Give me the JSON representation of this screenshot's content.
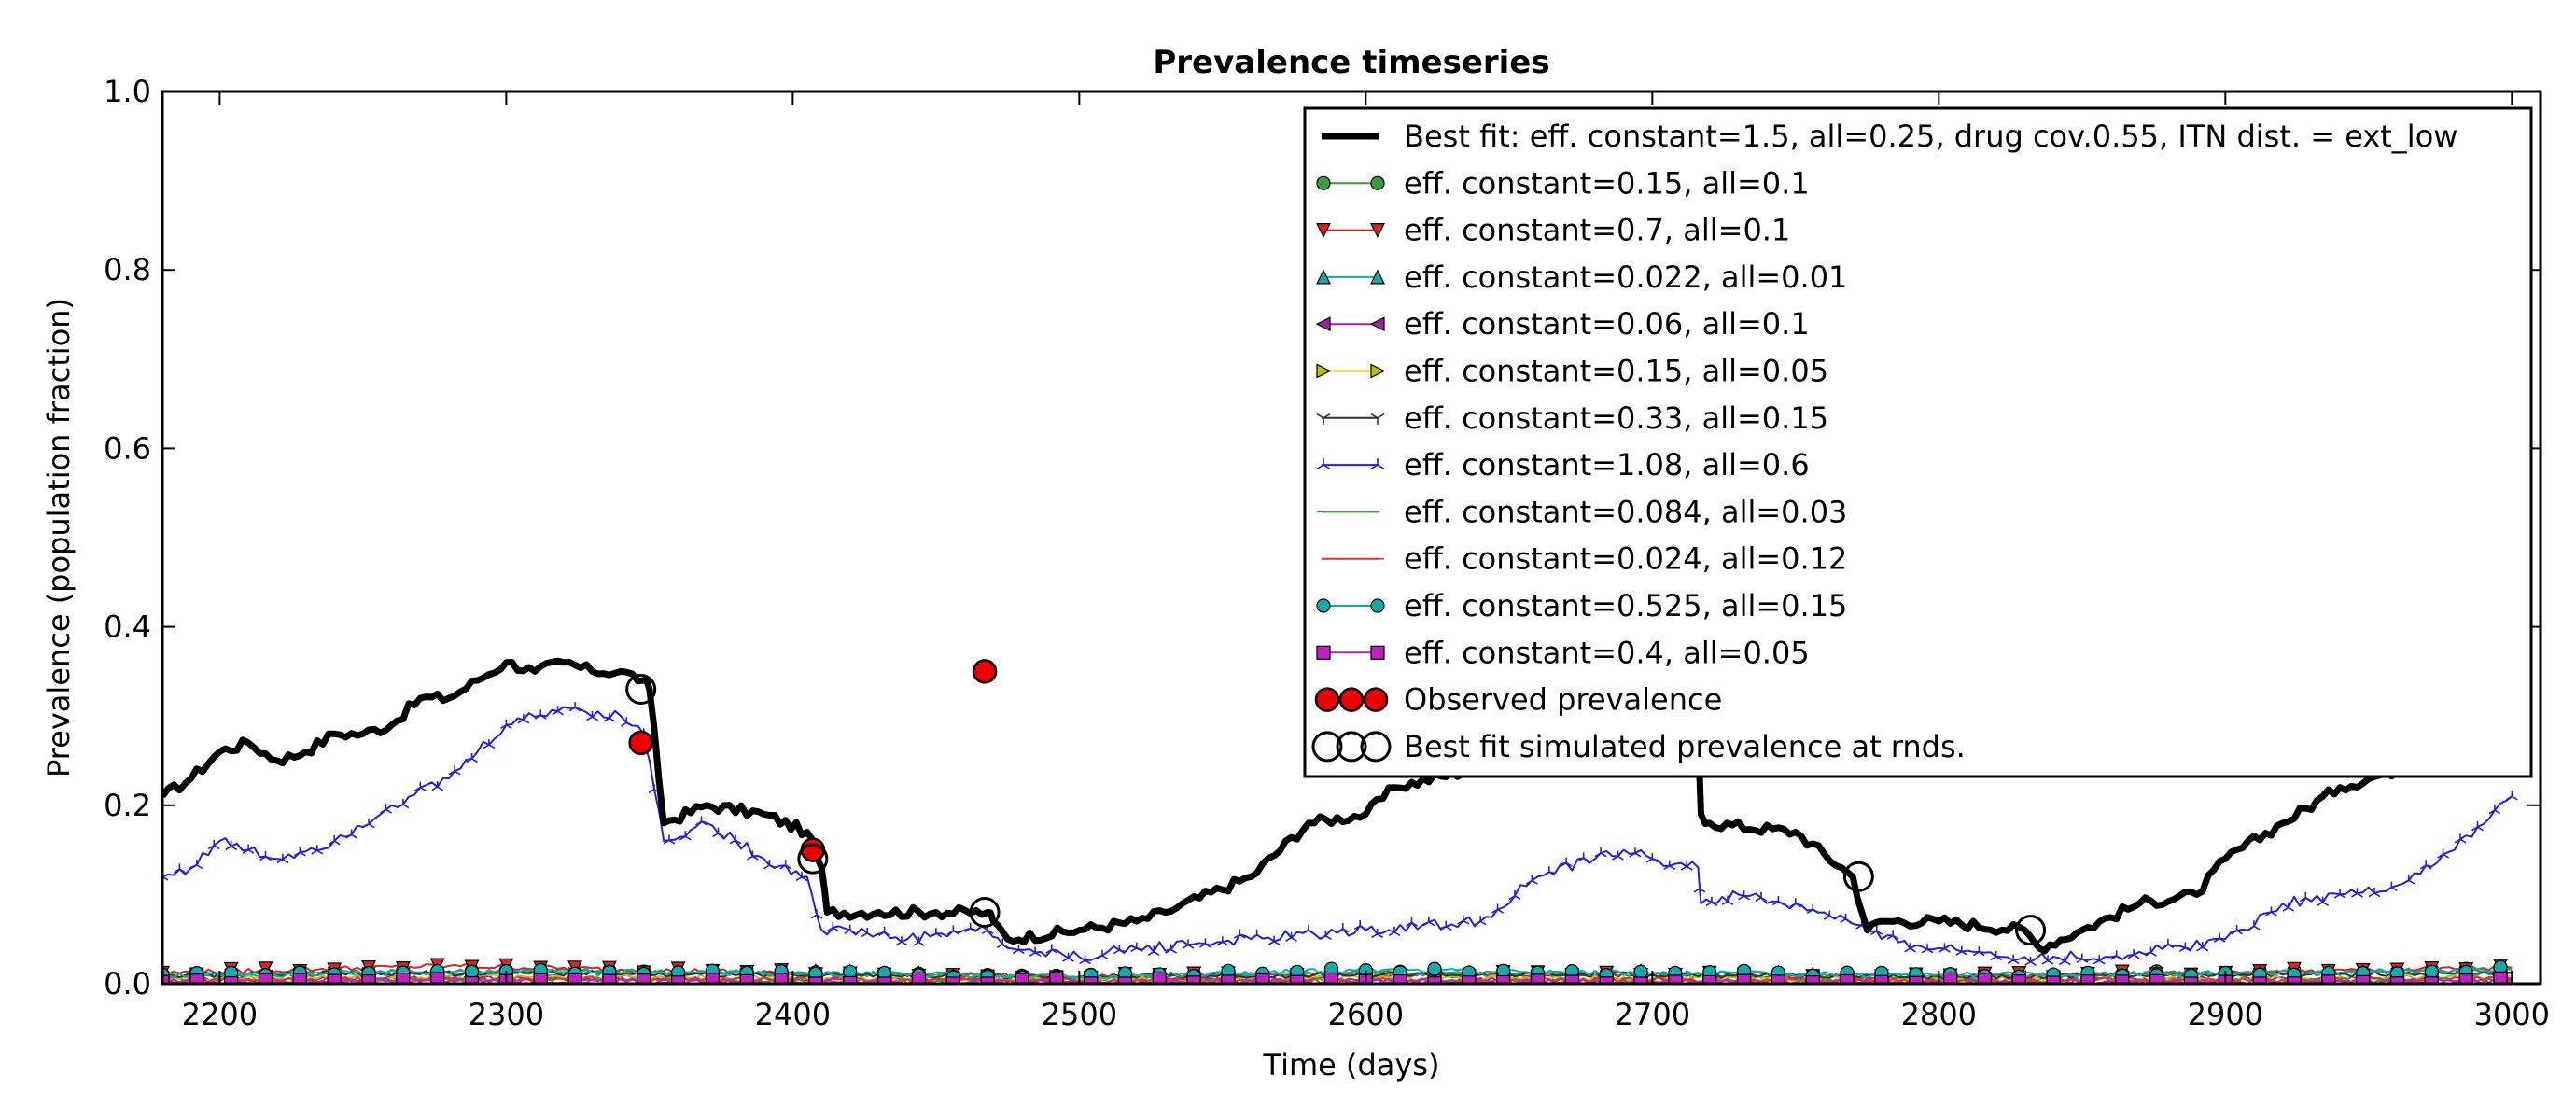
{
  "chart_data": {
    "type": "line",
    "title": "Prevalence timeseries",
    "xlabel": "Time (days)",
    "ylabel": "Prevalence (population fraction)",
    "xlim": [
      2180,
      3010
    ],
    "ylim": [
      0.0,
      1.0
    ],
    "xticks": [
      "2200",
      "2300",
      "2400",
      "2500",
      "2600",
      "2700",
      "2800",
      "2900",
      "3000"
    ],
    "yticks": [
      "0.0",
      "0.2",
      "0.4",
      "0.6",
      "0.8",
      "1.0"
    ],
    "grid": false,
    "legend_position": "top-right",
    "series": [
      {
        "name": "Best fit: eff. constant=1.5, all=0.25, drug cov.0.55, ITN dist. = ext_low",
        "color": "#000000",
        "style": "thick-line",
        "marker": "none",
        "x": [
          2180,
          2190,
          2200,
          2210,
          2220,
          2230,
          2240,
          2250,
          2260,
          2270,
          2280,
          2290,
          2300,
          2310,
          2320,
          2330,
          2340,
          2348,
          2350,
          2355,
          2370,
          2390,
          2405,
          2410,
          2412,
          2430,
          2450,
          2468,
          2470,
          2475,
          2500,
          2520,
          2530,
          2560,
          2580,
          2600,
          2610,
          2650,
          2700,
          2716,
          2717,
          2720,
          2750,
          2770,
          2775,
          2780,
          2800,
          2830,
          2835,
          2850,
          2870,
          2890,
          2900,
          2920,
          2940,
          2960
        ],
        "y": [
          0.21,
          0.23,
          0.26,
          0.27,
          0.25,
          0.26,
          0.28,
          0.28,
          0.29,
          0.32,
          0.32,
          0.34,
          0.36,
          0.35,
          0.36,
          0.35,
          0.35,
          0.34,
          0.33,
          0.18,
          0.2,
          0.19,
          0.17,
          0.13,
          0.08,
          0.08,
          0.08,
          0.08,
          0.07,
          0.05,
          0.06,
          0.07,
          0.08,
          0.12,
          0.18,
          0.19,
          0.22,
          0.25,
          0.27,
          0.28,
          0.19,
          0.18,
          0.17,
          0.12,
          0.06,
          0.07,
          0.07,
          0.06,
          0.04,
          0.06,
          0.09,
          0.1,
          0.14,
          0.18,
          0.22,
          0.24
        ]
      },
      {
        "name": "eff. constant=0.15, all=0.1",
        "color": "#3a9b3a",
        "marker": "circle",
        "x": [
          2180,
          2300,
          2400,
          2500,
          2600,
          2700,
          2800,
          2900,
          3000
        ],
        "y": [
          0.01,
          0.015,
          0.012,
          0.008,
          0.012,
          0.01,
          0.008,
          0.012,
          0.015
        ]
      },
      {
        "name": "eff. constant=0.7, all=0.1",
        "color": "#d62728",
        "marker": "triangle-down",
        "x": [
          2180,
          2280,
          2400,
          2500,
          2600,
          2700,
          2800,
          2900,
          3000
        ],
        "y": [
          0.012,
          0.02,
          0.012,
          0.008,
          0.01,
          0.01,
          0.008,
          0.012,
          0.018
        ]
      },
      {
        "name": "eff. constant=0.022, all=0.01",
        "color": "#17a9a9",
        "marker": "triangle-up",
        "x": [
          2180,
          2300,
          2400,
          2500,
          2600,
          2700,
          2800,
          2900,
          3000
        ],
        "y": [
          0.008,
          0.012,
          0.012,
          0.006,
          0.012,
          0.012,
          0.008,
          0.01,
          0.012
        ]
      },
      {
        "name": "eff. constant=0.06, all=0.1",
        "color": "#a020a0",
        "marker": "triangle-left",
        "x": [
          2180,
          2300,
          2400,
          2500,
          2600,
          2700,
          2800,
          2900,
          3000
        ],
        "y": [
          0.005,
          0.006,
          0.005,
          0.004,
          0.005,
          0.005,
          0.004,
          0.005,
          0.006
        ]
      },
      {
        "name": "eff. constant=0.15, all=0.05",
        "color": "#bfbf00",
        "marker": "triangle-right",
        "x": [
          2180,
          2300,
          2400,
          2500,
          2600,
          2700,
          2800,
          2900,
          3000
        ],
        "y": [
          0.006,
          0.008,
          0.007,
          0.005,
          0.006,
          0.006,
          0.005,
          0.006,
          0.007
        ]
      },
      {
        "name": "eff. constant=0.33, all=0.15",
        "color": "#333333",
        "marker": "tri-down",
        "x": [
          2180,
          2300,
          2400,
          2500,
          2600,
          2700,
          2800,
          2900,
          3000
        ],
        "y": [
          0.01,
          0.012,
          0.01,
          0.008,
          0.01,
          0.01,
          0.008,
          0.01,
          0.012
        ]
      },
      {
        "name": "eff. constant=1.08, all=0.6",
        "color": "#2020e0",
        "marker": "tri-up",
        "x": [
          2180,
          2190,
          2200,
          2210,
          2220,
          2240,
          2260,
          2280,
          2290,
          2300,
          2320,
          2340,
          2348,
          2350,
          2355,
          2370,
          2390,
          2405,
          2410,
          2420,
          2440,
          2460,
          2468,
          2475,
          2500,
          2520,
          2560,
          2600,
          2640,
          2660,
          2680,
          2690,
          2700,
          2716,
          2717,
          2730,
          2760,
          2775,
          2780,
          2800,
          2830,
          2860,
          2900,
          2920,
          2940,
          2960,
          2980,
          3000
        ],
        "y": [
          0.12,
          0.13,
          0.16,
          0.15,
          0.14,
          0.16,
          0.2,
          0.23,
          0.26,
          0.29,
          0.31,
          0.3,
          0.28,
          0.25,
          0.16,
          0.18,
          0.14,
          0.12,
          0.06,
          0.06,
          0.05,
          0.06,
          0.06,
          0.04,
          0.03,
          0.04,
          0.05,
          0.06,
          0.07,
          0.12,
          0.14,
          0.15,
          0.14,
          0.13,
          0.09,
          0.1,
          0.08,
          0.06,
          0.05,
          0.04,
          0.03,
          0.03,
          0.05,
          0.09,
          0.1,
          0.11,
          0.15,
          0.21
        ]
      },
      {
        "name": "eff. constant=0.084, all=0.03",
        "color": "#3a9b3a",
        "marker": "tick-left",
        "x": [
          2180,
          2300,
          2400,
          2500,
          2600,
          2700,
          2800,
          2900,
          3000
        ],
        "y": [
          0.003,
          0.004,
          0.003,
          0.002,
          0.003,
          0.003,
          0.002,
          0.003,
          0.004
        ]
      },
      {
        "name": "eff. constant=0.024, all=0.12",
        "color": "#e03030",
        "marker": "tick-right",
        "x": [
          2180,
          2300,
          2400,
          2500,
          2600,
          2700,
          2800,
          2900,
          3000
        ],
        "y": [
          0.004,
          0.005,
          0.004,
          0.003,
          0.004,
          0.004,
          0.003,
          0.004,
          0.005
        ]
      },
      {
        "name": "eff. constant=0.525, all=0.15",
        "color": "#17a9a9",
        "marker": "circle",
        "x": [
          2180,
          2300,
          2400,
          2500,
          2600,
          2700,
          2800,
          2900,
          3000
        ],
        "y": [
          0.01,
          0.014,
          0.012,
          0.008,
          0.015,
          0.012,
          0.01,
          0.012,
          0.016
        ]
      },
      {
        "name": "eff. constant=0.4, all=0.05",
        "color": "#c020c0",
        "marker": "square",
        "x": [
          2180,
          2300,
          2400,
          2500,
          2600,
          2700,
          2800,
          2900,
          3000
        ],
        "y": [
          0.002,
          0.003,
          0.002,
          0.002,
          0.003,
          0.002,
          0.002,
          0.002,
          0.003
        ]
      }
    ],
    "observed": {
      "name": "Observed prevalence",
      "color": "#ee0000",
      "x": [
        2347,
        2407,
        2467
      ],
      "y": [
        0.27,
        0.15,
        0.35
      ]
    },
    "best_fit_at_rounds": {
      "name": "Best fit simulated prevalence at rnds.",
      "x": [
        2347,
        2407,
        2467,
        2772,
        2832
      ],
      "y": [
        0.33,
        0.14,
        0.08,
        0.12,
        0.06
      ]
    }
  }
}
